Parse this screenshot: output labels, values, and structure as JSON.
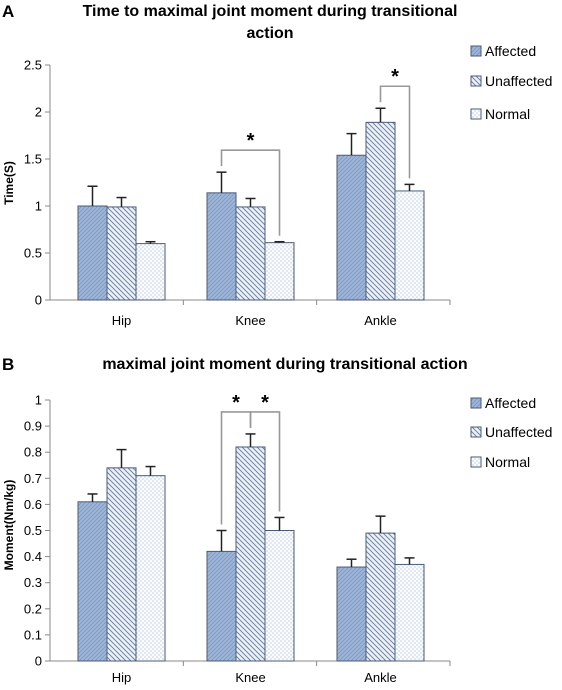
{
  "colors": {
    "affected_fill": "#9db6d8",
    "affected_stroke": "#4a5a78",
    "unaffected_fill": "#eef2f8",
    "unaffected_hatch": "#6f86a8",
    "normal_fill": "#fbfcfe",
    "normal_dots": "#7f98bb",
    "axis": "#888888",
    "bracket": "#999999"
  },
  "chart_data": [
    {
      "panel": "A",
      "type": "bar",
      "title": [
        "Time to maximal joint moment during transitional",
        "action"
      ],
      "ylabel": "Time(S)",
      "xlabel": "",
      "ylim": [
        0,
        2.5
      ],
      "yticks": [
        "0",
        "0.5",
        "1",
        "1.5",
        "2",
        "2.5"
      ],
      "categories": [
        "Hip",
        "Knee",
        "Ankle"
      ],
      "series": [
        {
          "name": "Affected",
          "values": [
            1.0,
            1.14,
            1.54
          ],
          "errors": [
            0.21,
            0.22,
            0.23
          ]
        },
        {
          "name": "Unaffected",
          "values": [
            0.99,
            0.99,
            1.89
          ],
          "errors": [
            0.1,
            0.09,
            0.15
          ]
        },
        {
          "name": "Normal",
          "values": [
            0.6,
            0.61,
            1.16
          ],
          "errors": [
            0.02,
            0.01,
            0.07
          ]
        }
      ],
      "significance": [
        {
          "label": "*",
          "category": 1,
          "from_series": 0,
          "to_series": 2
        },
        {
          "label": "*",
          "category": 2,
          "from_series": 1,
          "to_series": 2
        }
      ]
    },
    {
      "panel": "B",
      "type": "bar",
      "title": [
        "maximal joint moment during transitional action"
      ],
      "ylabel": "Moment(Nm/kg)",
      "xlabel": "",
      "ylim": [
        0,
        1
      ],
      "yticks": [
        "0",
        "0.1",
        "0.2",
        "0.3",
        "0.4",
        "0.5",
        "0.6",
        "0.7",
        "0.8",
        "0.9",
        "1"
      ],
      "categories": [
        "Hip",
        "Knee",
        "Ankle"
      ],
      "series": [
        {
          "name": "Affected",
          "values": [
            0.61,
            0.42,
            0.36
          ],
          "errors": [
            0.03,
            0.08,
            0.03
          ]
        },
        {
          "name": "Unaffected",
          "values": [
            0.74,
            0.82,
            0.49
          ],
          "errors": [
            0.07,
            0.05,
            0.065
          ]
        },
        {
          "name": "Normal",
          "values": [
            0.71,
            0.5,
            0.37
          ],
          "errors": [
            0.035,
            0.05,
            0.025
          ]
        }
      ],
      "significance": [
        {
          "label": "*",
          "category": 1,
          "from_series": 0,
          "to_series": 1
        },
        {
          "label": "*",
          "category": 1,
          "from_series": 1,
          "to_series": 2
        }
      ]
    }
  ]
}
